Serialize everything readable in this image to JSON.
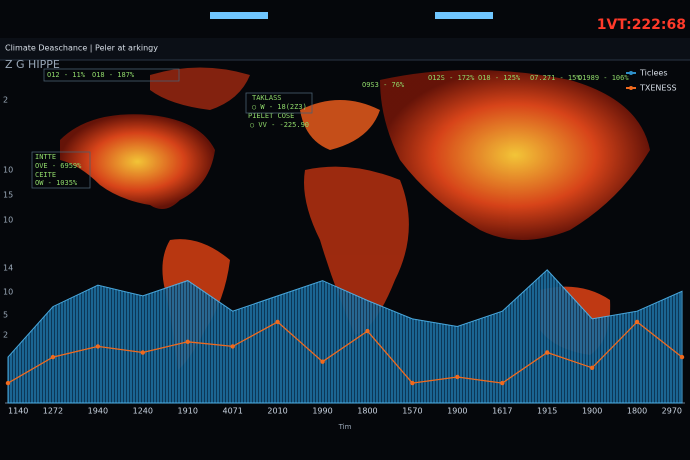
{
  "header": {
    "brand": "Z G HIPPE",
    "clock": "1VT:222:68",
    "title": "Climate Deaschance | Peler at arkingy"
  },
  "left_labels": [
    "2",
    "10",
    "15",
    "10",
    "14",
    "10",
    "5",
    "2"
  ],
  "annotations": [
    "O12 - 11%",
    "O18 - 187%",
    "TAKLASS",
    "○ W - 18(2Z3)",
    "PIELET COSE",
    "○ VV - -225.90",
    "O9S3 - 76%",
    "O12S - 172%",
    "O18 - 125%",
    "O7.271 - 15%",
    "O1989 - 106%",
    "INTTE",
    "OVE - 6959%",
    "CEITE",
    "OW - 1035%"
  ],
  "chart_data": {
    "type": "area",
    "x_label": "Tim",
    "categories": [
      "1140",
      "1272",
      "1940",
      "1240",
      "1910",
      "4071",
      "2010",
      "1990",
      "1800",
      "1570",
      "1900",
      "1617",
      "1915",
      "1900",
      "1800",
      "2970"
    ],
    "ylim": [
      0,
      100
    ],
    "legend": "top-right",
    "series": [
      {
        "name": "Ticlees",
        "color": "#2e8fc9",
        "values": [
          30,
          63,
          77,
          70,
          80,
          60,
          70,
          80,
          67,
          55,
          50,
          60,
          87,
          55,
          60,
          73
        ]
      },
      {
        "name": "TXENESS",
        "color": "#f06a1e",
        "values": [
          13,
          30,
          37,
          33,
          40,
          37,
          53,
          27,
          47,
          13,
          17,
          13,
          33,
          23,
          53,
          30
        ]
      }
    ]
  }
}
